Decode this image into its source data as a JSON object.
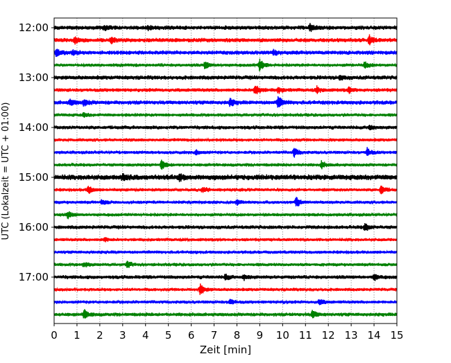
{
  "chart_data": {
    "type": "line",
    "title": "",
    "xlabel": "Zeit  [min]",
    "ylabel": "UTC (Lokalzeit = UTC + 01:00)",
    "xlim": [
      0,
      15
    ],
    "x_ticks": [
      "0",
      "1",
      "2",
      "3",
      "4",
      "5",
      "6",
      "7",
      "8",
      "9",
      "10",
      "11",
      "12",
      "13",
      "14",
      "15"
    ],
    "y_ticks": [
      "12:00",
      "13:00",
      "14:00",
      "15:00",
      "16:00",
      "17:00"
    ],
    "grid": "vertical dotted",
    "colors": [
      "#000000",
      "#ff0000",
      "#0000ff",
      "#008000"
    ],
    "traces": [
      {
        "start": "12:00",
        "noise": 1.0,
        "events": [
          [
            2.2,
            1.5
          ],
          [
            4.1,
            1.4
          ],
          [
            11.2,
            2.5
          ]
        ]
      },
      {
        "start": "12:15",
        "noise": 1.0,
        "events": [
          [
            0.9,
            2.0
          ],
          [
            2.5,
            1.5
          ],
          [
            13.8,
            2.6
          ]
        ]
      },
      {
        "start": "12:30",
        "noise": 1.0,
        "events": [
          [
            0.1,
            2.2
          ],
          [
            0.8,
            1.5
          ],
          [
            9.6,
            1.3
          ]
        ]
      },
      {
        "start": "12:45",
        "noise": 0.8,
        "events": [
          [
            6.6,
            2.2
          ],
          [
            9.0,
            4.0
          ],
          [
            13.6,
            2.0
          ]
        ]
      },
      {
        "start": "13:00",
        "noise": 1.0,
        "events": [
          [
            12.5,
            1.3
          ]
        ]
      },
      {
        "start": "13:15",
        "noise": 0.9,
        "events": [
          [
            8.8,
            3.5
          ],
          [
            9.8,
            1.8
          ],
          [
            11.5,
            2.0
          ],
          [
            12.9,
            1.6
          ]
        ]
      },
      {
        "start": "13:30",
        "noise": 1.0,
        "events": [
          [
            0.7,
            2.0
          ],
          [
            1.3,
            2.0
          ],
          [
            7.7,
            2.2
          ],
          [
            9.8,
            3.6
          ]
        ]
      },
      {
        "start": "13:45",
        "noise": 0.8,
        "events": [
          [
            1.3,
            1.2
          ]
        ]
      },
      {
        "start": "14:00",
        "noise": 0.9,
        "events": [
          [
            13.8,
            1.5
          ]
        ]
      },
      {
        "start": "14:15",
        "noise": 0.8,
        "events": []
      },
      {
        "start": "14:30",
        "noise": 0.8,
        "events": [
          [
            6.2,
            1.5
          ],
          [
            10.5,
            2.8
          ],
          [
            13.7,
            2.6
          ]
        ]
      },
      {
        "start": "14:45",
        "noise": 0.8,
        "events": [
          [
            4.7,
            3.2
          ],
          [
            11.7,
            2.0
          ]
        ]
      },
      {
        "start": "15:00",
        "noise": 1.3,
        "events": [
          [
            3.0,
            2.0
          ],
          [
            5.5,
            1.8
          ]
        ]
      },
      {
        "start": "15:15",
        "noise": 0.8,
        "events": [
          [
            1.5,
            2.6
          ],
          [
            6.5,
            1.8
          ],
          [
            14.3,
            3.0
          ]
        ]
      },
      {
        "start": "15:30",
        "noise": 0.8,
        "events": [
          [
            2.1,
            1.6
          ],
          [
            8.0,
            1.5
          ],
          [
            10.6,
            3.2
          ]
        ]
      },
      {
        "start": "15:45",
        "noise": 0.8,
        "events": [
          [
            0.6,
            2.2
          ]
        ]
      },
      {
        "start": "16:00",
        "noise": 0.9,
        "events": [
          [
            13.6,
            2.4
          ]
        ]
      },
      {
        "start": "16:15",
        "noise": 0.8,
        "events": [
          [
            2.2,
            1.2
          ]
        ]
      },
      {
        "start": "16:30",
        "noise": 0.8,
        "events": []
      },
      {
        "start": "16:45",
        "noise": 0.8,
        "events": [
          [
            1.3,
            1.4
          ],
          [
            3.2,
            2.0
          ]
        ]
      },
      {
        "start": "17:00",
        "noise": 0.9,
        "events": [
          [
            7.5,
            1.8
          ],
          [
            8.3,
            1.6
          ],
          [
            14.0,
            1.8
          ]
        ]
      },
      {
        "start": "17:15",
        "noise": 0.8,
        "events": [
          [
            6.4,
            3.2
          ]
        ]
      },
      {
        "start": "17:30",
        "noise": 0.8,
        "events": [
          [
            7.7,
            1.8
          ],
          [
            11.6,
            1.8
          ]
        ]
      },
      {
        "start": "17:45",
        "noise": 0.9,
        "events": [
          [
            1.3,
            3.0
          ],
          [
            11.3,
            2.4
          ]
        ]
      }
    ]
  }
}
